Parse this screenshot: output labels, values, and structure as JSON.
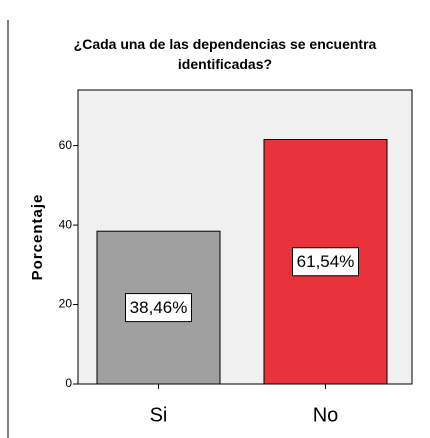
{
  "chart_data": {
    "type": "bar",
    "title": "¿Cada una de las dependencias se encuentra identificadas?",
    "y_label": "Porcentaje",
    "categories": [
      "Si",
      "No"
    ],
    "values": [
      38.46,
      61.54
    ],
    "value_labels": [
      "38,46%",
      "61,54%"
    ],
    "colors": [
      "#a0a0a0",
      "#e8323c"
    ],
    "ylim": [
      0,
      74
    ],
    "yticks": [
      0,
      20,
      40,
      60
    ]
  }
}
